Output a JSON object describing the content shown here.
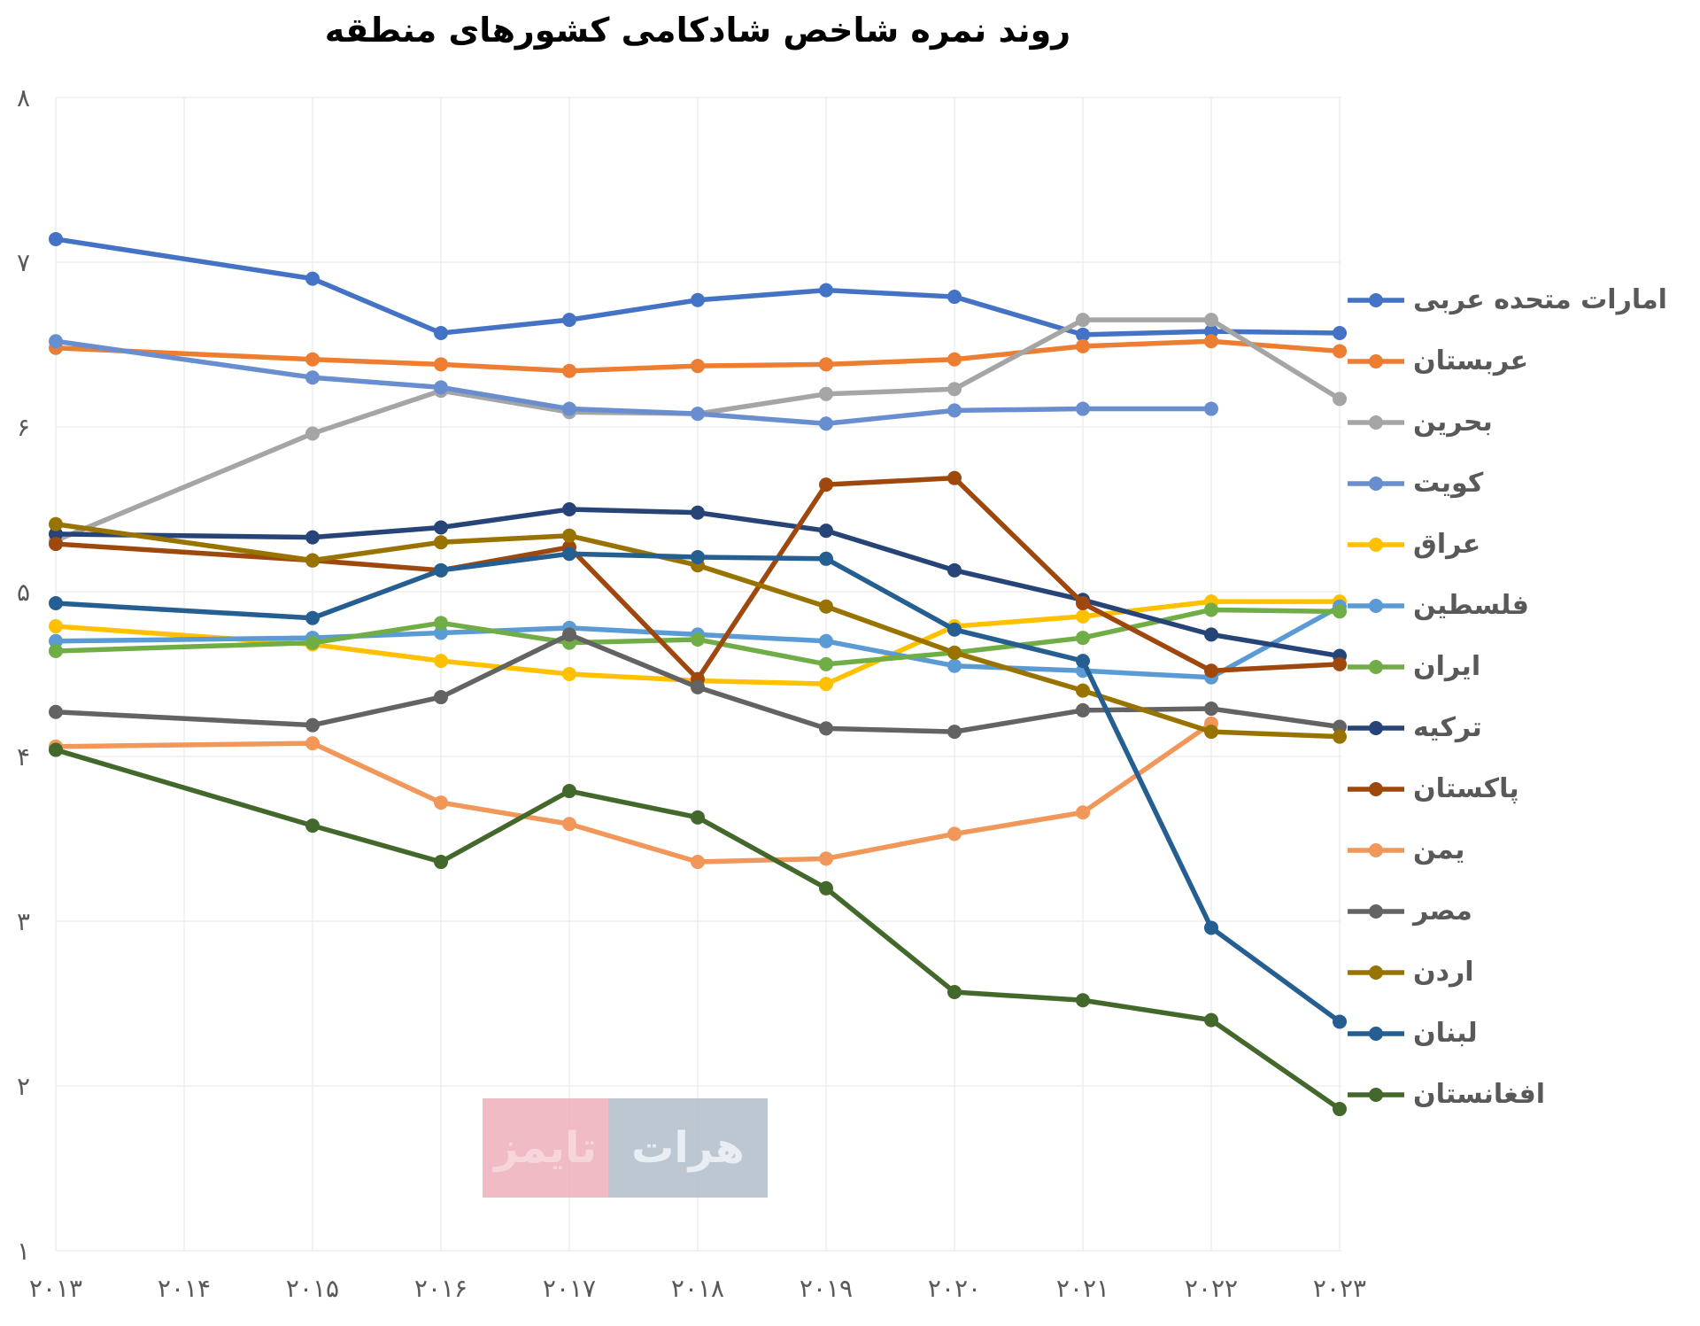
{
  "title": "روند نمره شاخص شادکامی کشورهای منطقه",
  "watermark": {
    "herat_text": "هرات",
    "times_text": "تایمز",
    "times_bg": "#efb6bf",
    "times_color": "#f7d3d9",
    "herat_bg": "#b7c3cf",
    "herat_color": "#e7edf3"
  },
  "chart_data": {
    "type": "line",
    "x": [
      2013,
      2015,
      2016,
      2017,
      2018,
      2019,
      2020,
      2021,
      2022,
      2023
    ],
    "note_visible_in_pixels": "no data points exist for 2014; lines connect 2013 directly to 2015",
    "x_tick_years": [
      2013,
      2014,
      2015,
      2016,
      2017,
      2018,
      2019,
      2020,
      2021,
      2022,
      2023
    ],
    "x_tick_labels": [
      "۲۰۱۳",
      "۲۰۱۴",
      "۲۰۱۵",
      "۲۰۱۶",
      "۲۰۱۷",
      "۲۰۱۸",
      "۲۰۱۹",
      "۲۰۲۰",
      "۲۰۲۱",
      "۲۰۲۲",
      "۲۰۲۳"
    ],
    "y_ticks": [
      1,
      2,
      3,
      4,
      5,
      6,
      7,
      8
    ],
    "y_tick_labels": [
      "۱",
      "۲",
      "۳",
      "۴",
      "۵",
      "۶",
      "۷",
      "۸"
    ],
    "ylim": [
      1,
      8
    ],
    "grid": true,
    "legend_position": "right",
    "series": [
      {
        "name": "امارات متحده عربی",
        "color": "#4472C4",
        "values": [
          7.14,
          6.9,
          6.57,
          6.65,
          6.77,
          6.83,
          6.79,
          6.56,
          6.58,
          6.57
        ]
      },
      {
        "name": "عربستان",
        "color": "#ED7D31",
        "values": [
          6.48,
          6.41,
          6.38,
          6.34,
          6.37,
          6.38,
          6.41,
          6.49,
          6.52,
          6.46
        ]
      },
      {
        "name": "بحرین",
        "color": "#A5A5A5",
        "values": [
          5.31,
          5.96,
          6.22,
          6.09,
          6.08,
          6.2,
          6.23,
          6.65,
          6.65,
          6.17
        ]
      },
      {
        "name": "کویت",
        "color": "#698ED0",
        "values": [
          6.52,
          6.3,
          6.24,
          6.11,
          6.08,
          6.02,
          6.1,
          6.11,
          6.11,
          null
        ]
      },
      {
        "name": "عراق",
        "color": "#FFC000",
        "values": [
          4.79,
          4.68,
          4.58,
          4.5,
          4.46,
          4.44,
          4.79,
          4.85,
          4.94,
          4.94
        ]
      },
      {
        "name": "فلسطین",
        "color": "#5B9BD5",
        "values": [
          4.7,
          4.72,
          4.75,
          4.78,
          4.74,
          4.7,
          4.55,
          4.52,
          4.48,
          4.91
        ]
      },
      {
        "name": "ایران",
        "color": "#70AD47",
        "values": [
          4.64,
          4.69,
          4.81,
          4.69,
          4.71,
          4.56,
          4.63,
          4.72,
          4.89,
          4.88
        ]
      },
      {
        "name": "ترکیه",
        "color": "#264478",
        "values": [
          5.35,
          5.33,
          5.39,
          5.5,
          5.48,
          5.37,
          5.13,
          4.95,
          4.74,
          4.61
        ]
      },
      {
        "name": "پاکستان",
        "color": "#9E480E",
        "values": [
          5.29,
          5.19,
          5.13,
          5.27,
          4.47,
          5.65,
          5.69,
          4.93,
          4.52,
          4.56
        ]
      },
      {
        "name": "یمن",
        "color": "#F1975A",
        "values": [
          4.06,
          4.08,
          3.72,
          3.59,
          3.36,
          3.38,
          3.53,
          3.66,
          4.2,
          null
        ]
      },
      {
        "name": "مصر",
        "color": "#636363",
        "values": [
          4.27,
          4.19,
          4.36,
          4.74,
          4.42,
          4.17,
          4.15,
          4.28,
          4.29,
          4.18
        ]
      },
      {
        "name": "اردن",
        "color": "#997300",
        "values": [
          5.41,
          5.19,
          5.3,
          5.34,
          5.16,
          4.91,
          4.63,
          4.4,
          4.15,
          4.12
        ]
      },
      {
        "name": "لبنان",
        "color": "#255E91",
        "values": [
          4.93,
          4.84,
          5.13,
          5.23,
          5.21,
          5.2,
          4.77,
          4.58,
          2.96,
          2.39
        ]
      },
      {
        "name": "افغانستان",
        "color": "#43682B",
        "values": [
          4.04,
          3.58,
          3.36,
          3.79,
          3.63,
          3.2,
          2.57,
          2.52,
          2.4,
          1.86
        ]
      }
    ]
  }
}
